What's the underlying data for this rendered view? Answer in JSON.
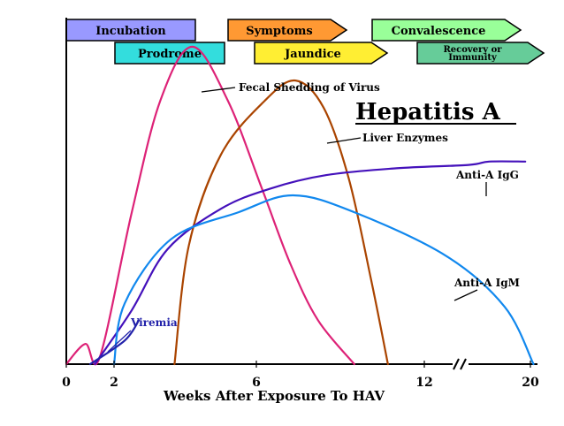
{
  "chart_data": {
    "type": "line",
    "title": "Hepatitis A",
    "xlabel": "Weeks After Exposure To HAV",
    "ylabel": "",
    "xlim": [
      0,
      20
    ],
    "x_ticks": [
      {
        "value": 0,
        "label": "0"
      },
      {
        "value": 2,
        "label": "2"
      },
      {
        "value": 6,
        "label": "6"
      },
      {
        "value": 12,
        "label": "12"
      },
      {
        "value": 20,
        "label": "20"
      }
    ],
    "axis_break_near": 14,
    "grid": false,
    "legend": "direct labels on curves",
    "phases": [
      {
        "label": "Incubation",
        "color": "#9999ff",
        "shape": "rect",
        "row": 1
      },
      {
        "label": "Symptoms",
        "color": "#ff9933",
        "shape": "arrow",
        "row": 1
      },
      {
        "label": "Convalescence",
        "color": "#99ff99",
        "shape": "arrow",
        "row": 1
      },
      {
        "label": "Prodrome",
        "color": "#33dddd",
        "shape": "rect",
        "row": 2
      },
      {
        "label": "Jaundice",
        "color": "#ffee33",
        "shape": "arrow",
        "row": 2
      },
      {
        "label": "Recovery or Immunity",
        "color": "#66cc99",
        "shape": "arrow",
        "row": 2
      }
    ],
    "series": [
      {
        "name": "Fecal Shedding of Virus",
        "color": "#dd2277",
        "points": [
          [
            0,
            0
          ],
          [
            0.8,
            0.06
          ],
          [
            1.4,
            0.02
          ],
          [
            2.5,
            0.45
          ],
          [
            3.3,
            0.78
          ],
          [
            4.2,
            0.94
          ],
          [
            5.2,
            0.78
          ],
          [
            6.2,
            0.52
          ],
          [
            7.2,
            0.3
          ],
          [
            8.2,
            0.13
          ],
          [
            9.5,
            0.0
          ]
        ]
      },
      {
        "name": "Liver Enzymes",
        "color": "#aa4400",
        "points": [
          [
            3.7,
            0.0
          ],
          [
            4.1,
            0.35
          ],
          [
            5.0,
            0.62
          ],
          [
            6.3,
            0.78
          ],
          [
            7.4,
            0.84
          ],
          [
            8.4,
            0.76
          ],
          [
            9.3,
            0.55
          ],
          [
            10.1,
            0.25
          ],
          [
            10.7,
            0.0
          ]
        ]
      },
      {
        "name": "Anti-A IgG",
        "color": "#4411bb",
        "points": [
          [
            1.2,
            0.0
          ],
          [
            2.5,
            0.16
          ],
          [
            3.5,
            0.34
          ],
          [
            5.0,
            0.46
          ],
          [
            6.5,
            0.52
          ],
          [
            8.5,
            0.56
          ],
          [
            11,
            0.58
          ],
          [
            14,
            0.59
          ],
          [
            16,
            0.6
          ],
          [
            19.5,
            0.6
          ]
        ]
      },
      {
        "name": "Anti-A IgM",
        "color": "#1188ee",
        "points": [
          [
            2.0,
            0.0
          ],
          [
            2.3,
            0.18
          ],
          [
            3.6,
            0.37
          ],
          [
            5.5,
            0.45
          ],
          [
            7.3,
            0.5
          ],
          [
            9.5,
            0.45
          ],
          [
            13,
            0.32
          ],
          [
            17.5,
            0.17
          ],
          [
            20.3,
            0.0
          ]
        ]
      },
      {
        "name": "Viremia",
        "color": "#2222aa",
        "points": [
          [
            1.0,
            0.0
          ],
          [
            2.3,
            0.07
          ],
          [
            2.7,
            0.13
          ]
        ]
      }
    ]
  }
}
